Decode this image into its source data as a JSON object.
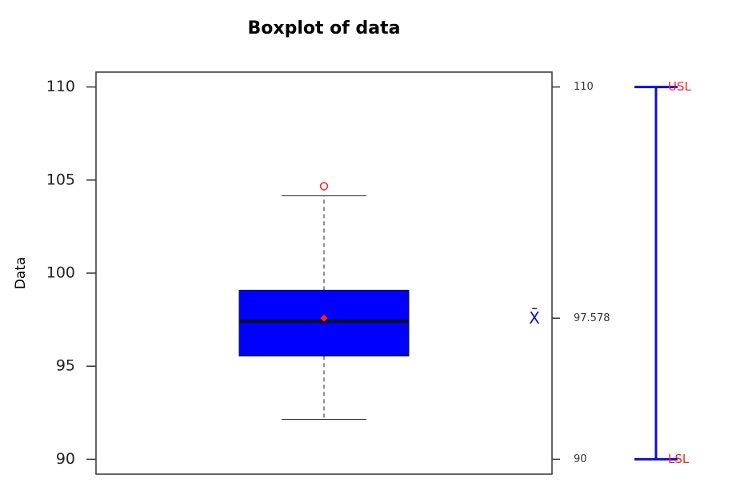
{
  "chart_data": {
    "type": "box",
    "title": "Boxplot of data",
    "ylabel": "Data",
    "ylim": [
      89.2,
      110.8
    ],
    "yticks": [
      90,
      95,
      100,
      105,
      110
    ],
    "y2lim": [
      89.2,
      110.8
    ],
    "y2ticks": [
      90,
      97.578,
      110
    ],
    "boxes": [
      {
        "q1": 95.55,
        "median": 97.4,
        "q3": 99.08,
        "whisker_low": 92.15,
        "whisker_high": 104.15,
        "mean": 97.578,
        "outliers": [
          104.67
        ]
      }
    ],
    "color": "#0000ff",
    "mean_color": "#ff2020",
    "outlier_color": "#ff2020",
    "mean_symbol": "X̄",
    "spec_limits": [
      {
        "label": "USL",
        "value": 110
      },
      {
        "label": "LSL",
        "value": 90
      }
    ],
    "spec_color": "#1010d0",
    "spec_label_color": "#ff2020"
  }
}
